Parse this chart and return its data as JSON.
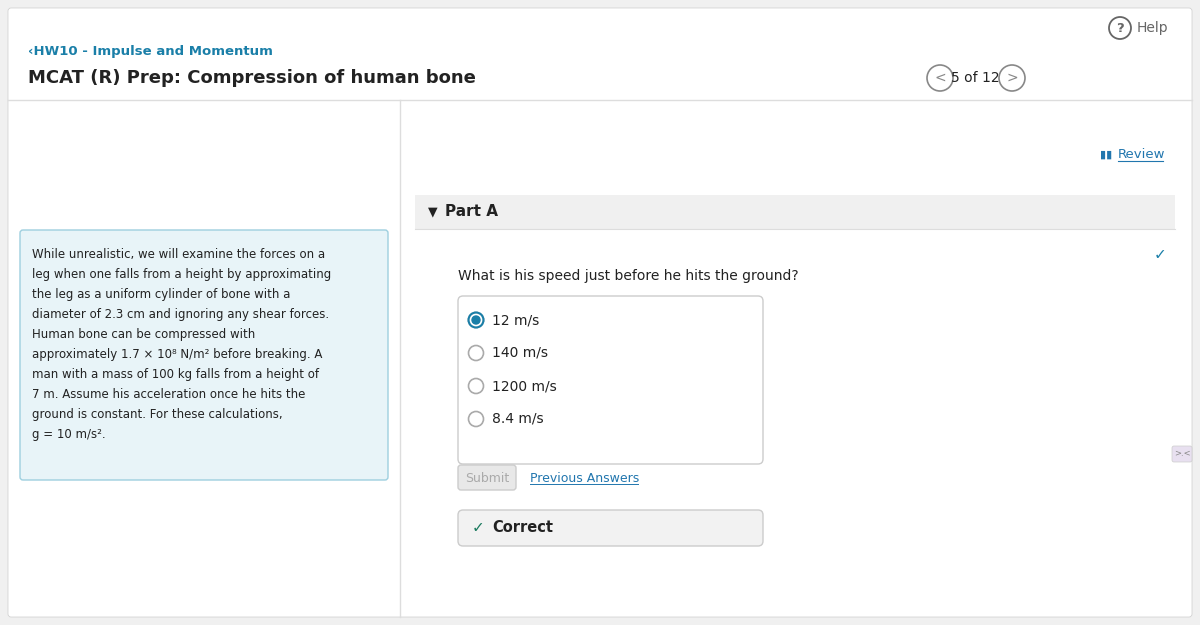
{
  "bg_color": "#f0f0f0",
  "white": "#ffffff",
  "light_blue_box": "#e8f4f8",
  "teal_text": "#1a7fa8",
  "dark_text": "#222222",
  "gray_text": "#666666",
  "light_gray": "#dddddd",
  "medium_gray": "#aaaaaa",
  "blue_link": "#2176ae",
  "green_check": "#1a7a5e",
  "submit_bg": "#e8e8e8",
  "submit_text": "#aaaaaa",
  "answer_box_border": "#cccccc",
  "correct_box_bg": "#f2f2f2",
  "nav_circle_color": "#888888",
  "part_header_bg": "#f0f0f0",
  "header_hw": "‹HW10 - Impulse and Momentum",
  "header_title": "MCAT (R) Prep: Compression of human bone",
  "help_text": "Help",
  "page_info": "5 of 12",
  "problem_text_lines": [
    "While unrealistic, we will examine the forces on a",
    "leg when one falls from a height by approximating",
    "the leg as a uniform cylinder of bone with a",
    "diameter of 2.3 cm and ignoring any shear forces.",
    "Human bone can be compressed with",
    "approximately 1.7 × 10⁸ N/m² before breaking. A",
    "man with a mass of 100 kg falls from a height of",
    "7 m. Assume his acceleration once he hits the",
    "ground is constant. For these calculations,",
    "g = 10 m/s²."
  ],
  "part_label": "Part A",
  "question_text": "What is his speed just before he hits the ground?",
  "choices": [
    "12 m/s",
    "140 m/s",
    "1200 m/s",
    "8.4 m/s"
  ],
  "correct_choice_index": 0,
  "submit_label": "Submit",
  "prev_answers_label": "Previous Answers",
  "correct_label": "Correct"
}
